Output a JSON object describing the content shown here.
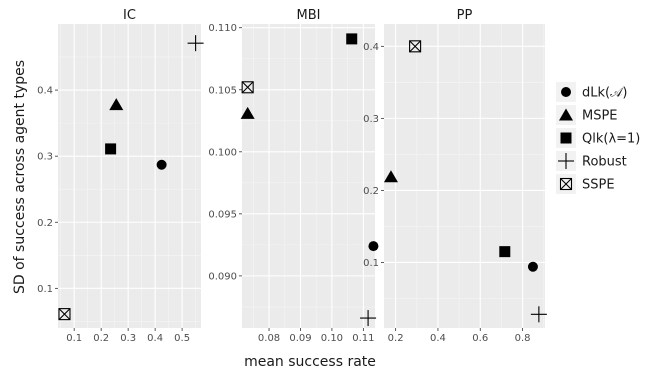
{
  "chart_data": {
    "type": "scatter",
    "xlabel": "mean success rate",
    "ylabel": "SD of success across agent types",
    "grid": true,
    "legend_position": "right",
    "series": [
      {
        "name": "dLk(𝒜)",
        "marker": "circle"
      },
      {
        "name": "MSPE",
        "marker": "triangle"
      },
      {
        "name": "Qlk(λ=1)",
        "marker": "square"
      },
      {
        "name": "Robust",
        "marker": "plus"
      },
      {
        "name": "SSPE",
        "marker": "boxed-x"
      }
    ],
    "facets": [
      {
        "title": "IC",
        "xlim": [
          0.04,
          0.57
        ],
        "ylim": [
          0.04,
          0.5
        ],
        "xticks": [
          0.1,
          0.2,
          0.3,
          0.4,
          0.5
        ],
        "xtick_labels": [
          "0.1",
          "0.2",
          "0.3",
          "0.4",
          "0.5"
        ],
        "yticks": [
          0.1,
          0.2,
          0.3,
          0.4
        ],
        "ytick_labels": [
          "0.1",
          "0.2",
          "0.3",
          "0.4"
        ],
        "points": [
          {
            "series": "dLk(𝒜)",
            "x": 0.424,
            "y": 0.287
          },
          {
            "series": "MSPE",
            "x": 0.256,
            "y": 0.378
          },
          {
            "series": "Qlk(λ=1)",
            "x": 0.235,
            "y": 0.311
          },
          {
            "series": "Robust",
            "x": 0.55,
            "y": 0.471
          },
          {
            "series": "SSPE",
            "x": 0.064,
            "y": 0.061
          }
        ]
      },
      {
        "title": "MBI",
        "xlim": [
          0.0714,
          0.1137
        ],
        "ylim": [
          0.0858,
          0.1103
        ],
        "xticks": [
          0.08,
          0.09,
          0.1,
          0.11
        ],
        "xtick_labels": [
          "0.08",
          "0.09",
          "0.10",
          "0.11"
        ],
        "yticks": [
          0.09,
          0.095,
          0.1,
          0.105,
          0.11
        ],
        "ytick_labels": [
          "0.090",
          "0.095",
          "0.100",
          "0.105",
          "0.110"
        ],
        "points": [
          {
            "series": "dLk(𝒜)",
            "x": 0.1132,
            "y": 0.0924
          },
          {
            "series": "MSPE",
            "x": 0.0732,
            "y": 0.1031
          },
          {
            "series": "Qlk(λ=1)",
            "x": 0.1063,
            "y": 0.1091
          },
          {
            "series": "Robust",
            "x": 0.1115,
            "y": 0.0866
          },
          {
            "series": "SSPE",
            "x": 0.0732,
            "y": 0.1052
          }
        ]
      },
      {
        "title": "PP",
        "xlim": [
          0.145,
          0.906
        ],
        "ylim": [
          0.009,
          0.431
        ],
        "xticks": [
          0.2,
          0.4,
          0.6,
          0.8
        ],
        "xtick_labels": [
          "0.2",
          "0.4",
          "0.6",
          "0.8"
        ],
        "yticks": [
          0.1,
          0.2,
          0.3,
          0.4
        ],
        "ytick_labels": [
          "0.1",
          "0.2",
          "0.3",
          "0.4"
        ],
        "points": [
          {
            "series": "dLk(𝒜)",
            "x": 0.849,
            "y": 0.094
          },
          {
            "series": "MSPE",
            "x": 0.178,
            "y": 0.219
          },
          {
            "series": "Qlk(λ=1)",
            "x": 0.716,
            "y": 0.115
          },
          {
            "series": "Robust",
            "x": 0.877,
            "y": 0.028
          },
          {
            "series": "SSPE",
            "x": 0.292,
            "y": 0.4
          }
        ]
      }
    ]
  }
}
